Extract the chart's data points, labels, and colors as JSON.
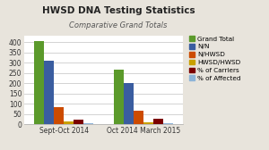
{
  "title": "HWSD DNA Testing Statistics",
  "subtitle": "Comparative Grand Totals",
  "groups": [
    "Sept-Oct 2014",
    "Oct 2014 March 2015"
  ],
  "series": [
    {
      "label": "Grand Total",
      "values": [
        405,
        265
      ],
      "color": "#5B9A2B"
    },
    {
      "label": "N/N",
      "values": [
        310,
        200
      ],
      "color": "#3A5DA0"
    },
    {
      "label": "N/HWSD",
      "values": [
        85,
        65
      ],
      "color": "#CC4B00"
    },
    {
      "label": "HWSD/HWSD",
      "values": [
        15,
        10
      ],
      "color": "#C8A000"
    },
    {
      "label": "% of Carriers",
      "values": [
        25,
        28
      ],
      "color": "#7B0000"
    },
    {
      "label": "% of Affected",
      "values": [
        5,
        7
      ],
      "color": "#8DB4D8"
    }
  ],
  "ylim": [
    0,
    430
  ],
  "yticks": [
    0,
    50,
    100,
    150,
    200,
    250,
    300,
    350,
    400
  ],
  "background_color": "#E8E4DC",
  "plot_bg_color": "#FFFFFF",
  "title_fontsize": 7.5,
  "subtitle_fontsize": 6.0,
  "tick_fontsize": 5.5,
  "legend_fontsize": 5.2,
  "bar_width": 0.1,
  "group_centers": [
    0.35,
    1.15
  ]
}
